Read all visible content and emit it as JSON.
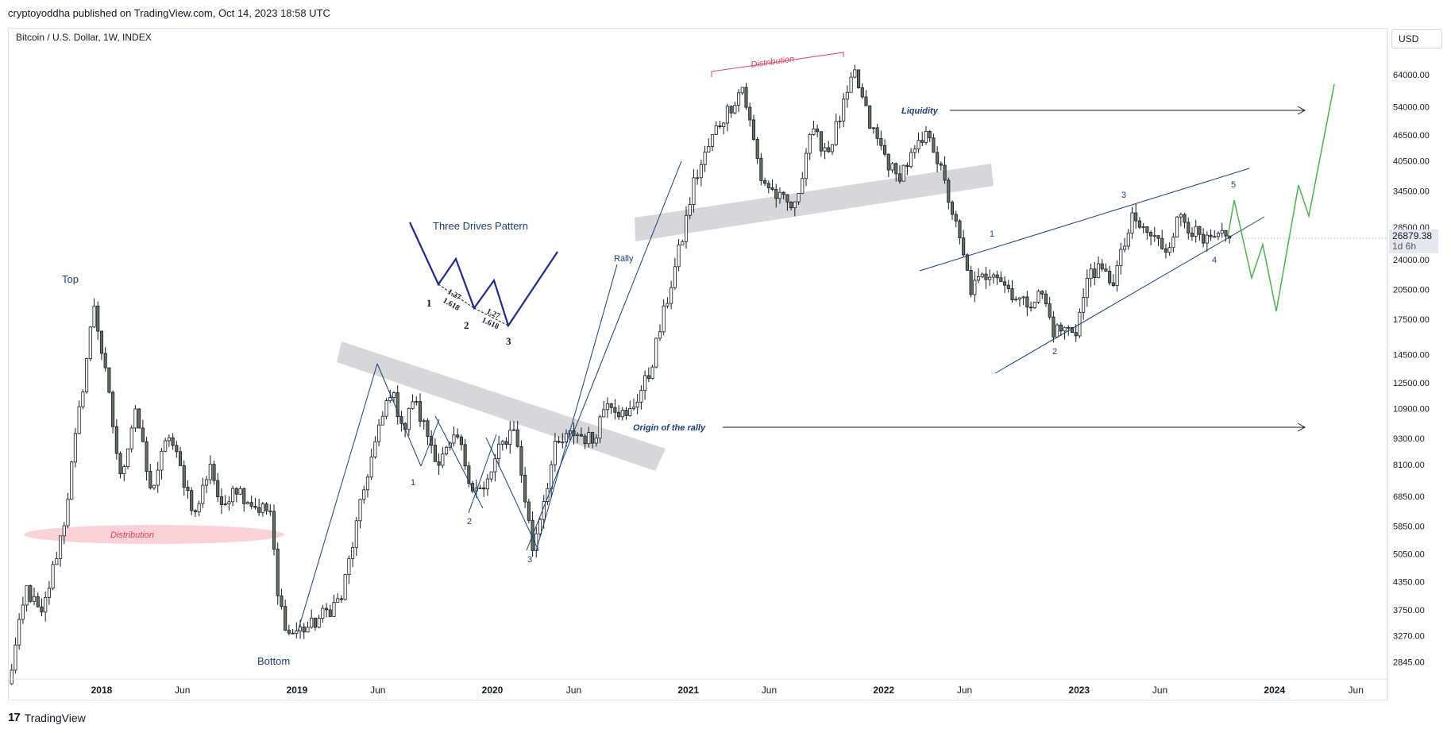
{
  "header": {
    "publisher_line": "cryptoyoddha published on TradingView.com, Oct 14, 2023 18:58 UTC"
  },
  "symbol": {
    "title": "Bitcoin / U.S. Dollar, 1W, INDEX"
  },
  "currency": "USD",
  "footer": {
    "brand": "TradingView",
    "brand_mark": "17"
  },
  "colors": {
    "up": "#26a69a",
    "down": "#131722",
    "candle_body": "#66705f",
    "annotation_blue": "#1a3e73",
    "distribution_red": "#d9425f",
    "zone_gray": "#d3d3d6",
    "projection_green": "#4caf50",
    "axis_text": "#131722"
  },
  "chart_data": {
    "type": "candlestick",
    "title": "Bitcoin / U.S. Dollar, 1W, INDEX",
    "y_scale": "log",
    "ylim": [
      2600,
      82000
    ],
    "xlim": [
      "2017-07-10",
      "2024-07-30"
    ],
    "y_ticks": [
      "64000.00",
      "54000.00",
      "46500.00",
      "40500.00",
      "34500.00",
      "28500.00",
      "24000.00",
      "20500.00",
      "17500.00",
      "14500.00",
      "12500.00",
      "10900.00",
      "9300.00",
      "8100.00",
      "6850.00",
      "5850.00",
      "5050.00",
      "4350.00",
      "3750.00",
      "3270.00",
      "2845.00"
    ],
    "x_ticks": [
      {
        "label": "2018",
        "date": "2018-01-01",
        "bold": true
      },
      {
        "label": "Jun",
        "date": "2018-06-01",
        "bold": false
      },
      {
        "label": "2019",
        "date": "2019-01-01",
        "bold": true
      },
      {
        "label": "Jun",
        "date": "2019-06-01",
        "bold": false
      },
      {
        "label": "2020",
        "date": "2020-01-01",
        "bold": true
      },
      {
        "label": "Jun",
        "date": "2020-06-01",
        "bold": false
      },
      {
        "label": "2021",
        "date": "2021-01-01",
        "bold": true
      },
      {
        "label": "Jun",
        "date": "2021-06-01",
        "bold": false
      },
      {
        "label": "2022",
        "date": "2022-01-01",
        "bold": true
      },
      {
        "label": "Jun",
        "date": "2022-06-01",
        "bold": false
      },
      {
        "label": "2023",
        "date": "2023-01-01",
        "bold": true
      },
      {
        "label": "Jun",
        "date": "2023-06-01",
        "bold": false
      },
      {
        "label": "2024",
        "date": "2024-01-01",
        "bold": true
      },
      {
        "label": "Jun",
        "date": "2024-06-01",
        "bold": false
      }
    ],
    "last_price": {
      "value": "26879.38",
      "countdown": "1d 6h",
      "price": 26879.38
    },
    "series": [
      {
        "name": "BTCUSD",
        "anchors": [
          [
            "2017-07-10",
            2500
          ],
          [
            "2017-08-14",
            4200
          ],
          [
            "2017-09-11",
            3600
          ],
          [
            "2017-10-23",
            6000
          ],
          [
            "2017-12-18",
            19000
          ],
          [
            "2018-01-15",
            11500
          ],
          [
            "2018-02-05",
            7500
          ],
          [
            "2018-03-05",
            11000
          ],
          [
            "2018-04-02",
            7000
          ],
          [
            "2018-05-07",
            9500
          ],
          [
            "2018-06-25",
            6200
          ],
          [
            "2018-07-23",
            8200
          ],
          [
            "2018-08-13",
            6300
          ],
          [
            "2018-09-03",
            7300
          ],
          [
            "2018-10-15",
            6500
          ],
          [
            "2018-11-12",
            6300
          ],
          [
            "2018-11-26",
            4000
          ],
          [
            "2018-12-17",
            3300
          ],
          [
            "2019-01-28",
            3450
          ],
          [
            "2019-03-25",
            4000
          ],
          [
            "2019-05-13",
            7800
          ],
          [
            "2019-06-24",
            12000
          ],
          [
            "2019-07-22",
            9800
          ],
          [
            "2019-08-05",
            11500
          ],
          [
            "2019-09-23",
            8200
          ],
          [
            "2019-10-28",
            9300
          ],
          [
            "2019-11-25",
            7200
          ],
          [
            "2019-12-16",
            7000
          ],
          [
            "2020-01-13",
            8700
          ],
          [
            "2020-02-10",
            10000
          ],
          [
            "2020-03-16",
            5200
          ],
          [
            "2020-04-27",
            8800
          ],
          [
            "2020-06-01",
            9600
          ],
          [
            "2020-07-06",
            9200
          ],
          [
            "2020-08-03",
            11600
          ],
          [
            "2020-09-07",
            10300
          ],
          [
            "2020-10-19",
            13000
          ],
          [
            "2020-12-21",
            27000
          ],
          [
            "2021-01-11",
            36000
          ],
          [
            "2021-02-22",
            48000
          ],
          [
            "2021-04-12",
            60000
          ],
          [
            "2021-05-17",
            37000
          ],
          [
            "2021-06-21",
            33000
          ],
          [
            "2021-07-19",
            31500
          ],
          [
            "2021-08-16",
            47000
          ],
          [
            "2021-09-20",
            43000
          ],
          [
            "2021-11-08",
            64000
          ],
          [
            "2021-12-06",
            49000
          ],
          [
            "2022-01-24",
            37000
          ],
          [
            "2022-03-28",
            47000
          ],
          [
            "2022-05-09",
            31000
          ],
          [
            "2022-06-13",
            20500
          ],
          [
            "2022-07-25",
            23000
          ],
          [
            "2022-08-15",
            21000
          ],
          [
            "2022-09-19",
            19000
          ],
          [
            "2022-10-24",
            20000
          ],
          [
            "2022-11-14",
            16500
          ],
          [
            "2022-12-26",
            16600
          ],
          [
            "2023-01-23",
            23000
          ],
          [
            "2023-03-06",
            21500
          ],
          [
            "2023-04-10",
            29500
          ],
          [
            "2023-06-12",
            25500
          ],
          [
            "2023-07-10",
            30500
          ],
          [
            "2023-08-21",
            26000
          ],
          [
            "2023-09-18",
            26800
          ],
          [
            "2023-10-09",
            26879
          ]
        ]
      }
    ]
  },
  "annotations": {
    "top_label": "Top",
    "bottom_label": "Bottom",
    "distribution_low": "Distribution",
    "distribution_high": "Distribution",
    "rally_label": "Rally",
    "origin_label": "Origin of the rally",
    "liquidity_label": "Liquidity",
    "three_drives": {
      "title": "Three Drives Pattern",
      "n1": "1",
      "n2": "2",
      "n3": "3",
      "r1a": "1.27",
      "r1b": "1.618",
      "r2a": "1.27",
      "r2b": "1.618"
    },
    "waves_2019": {
      "w1": "1",
      "w2": "2",
      "w3": "3"
    },
    "wedge_waves": {
      "w1": "1",
      "w2": "2",
      "w3": "3",
      "w4": "4",
      "w5": "5"
    }
  }
}
